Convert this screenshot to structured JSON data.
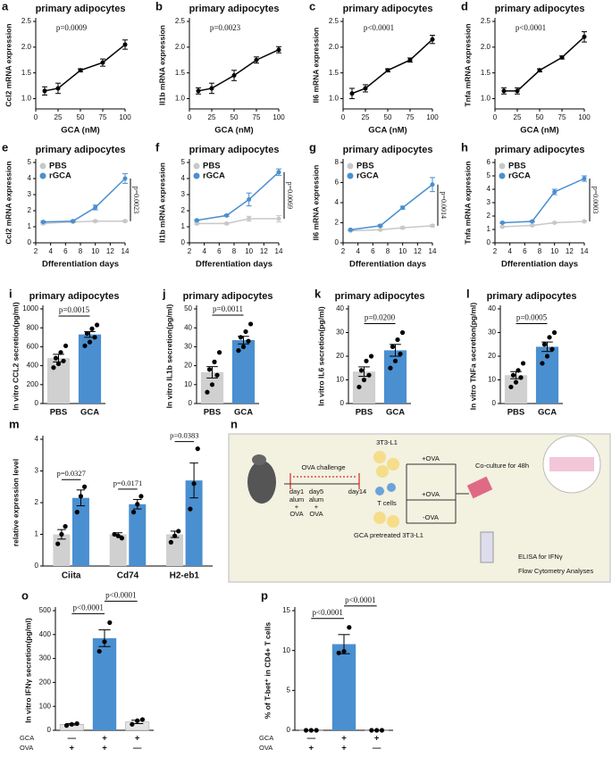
{
  "chart_data": [
    {
      "panel": "a",
      "type": "line",
      "title": "primary adipocytes",
      "ylabel": "Ccl2 mRNA expression",
      "xlabel": "GCA (nM)",
      "annotations": [
        "p=0.0009"
      ],
      "x": [
        10,
        25,
        50,
        75,
        100
      ],
      "xlim": [
        0,
        100
      ],
      "xticks": [
        0,
        25,
        50,
        75,
        100
      ],
      "ylim": [
        0.8,
        2.5
      ],
      "yticks": [
        {
          "value": 1,
          "label": "1.0"
        },
        1.5,
        {
          "value": 2,
          "label": "2.0"
        },
        2.5
      ],
      "series": [
        {
          "color": "#000000",
          "values": [
            1.15,
            1.2,
            1.55,
            1.7,
            2.05
          ],
          "errors": [
            0.08,
            0.1,
            0.03,
            0.07,
            0.09
          ]
        }
      ]
    },
    {
      "panel": "b",
      "type": "line",
      "title": "primary adipocytes",
      "ylabel": "Il1b mRNA expression",
      "xlabel": "GCA (nM)",
      "annotations": [
        "p=0.0023"
      ],
      "x": [
        10,
        25,
        50,
        75,
        100
      ],
      "xlim": [
        0,
        100
      ],
      "xticks": [
        0,
        25,
        50,
        75,
        100
      ],
      "ylim": [
        0.8,
        2.5
      ],
      "yticks": [
        {
          "value": 1,
          "label": "1.0"
        },
        1.5,
        {
          "value": 2,
          "label": "2.0"
        },
        2.5
      ],
      "series": [
        {
          "color": "#000000",
          "values": [
            1.15,
            1.2,
            1.45,
            1.75,
            1.95
          ],
          "errors": [
            0.06,
            0.1,
            0.1,
            0.06,
            0.06
          ]
        }
      ]
    },
    {
      "panel": "c",
      "type": "line",
      "title": "primary adipocytes",
      "ylabel": "Il6 mRNA expression",
      "xlabel": "GCA (nM)",
      "annotations": [
        "p<0.0001"
      ],
      "x": [
        10,
        25,
        50,
        75,
        100
      ],
      "xlim": [
        0,
        100
      ],
      "xticks": [
        0,
        25,
        50,
        75,
        100
      ],
      "ylim": [
        0.8,
        2.5
      ],
      "yticks": [
        {
          "value": 1,
          "label": "1.0"
        },
        1.5,
        {
          "value": 2,
          "label": "2.0"
        },
        2.5
      ],
      "series": [
        {
          "color": "#000000",
          "values": [
            1.1,
            1.2,
            1.55,
            1.75,
            2.15
          ],
          "errors": [
            0.1,
            0.07,
            0.03,
            0.04,
            0.08
          ]
        }
      ]
    },
    {
      "panel": "d",
      "type": "line",
      "title": "primary adipocytes",
      "ylabel": "Tnfa mRNA expression",
      "xlabel": "GCA (nM)",
      "annotations": [
        "p<0.0001"
      ],
      "x": [
        10,
        25,
        50,
        75,
        100
      ],
      "xlim": [
        0,
        100
      ],
      "xticks": [
        0,
        25,
        50,
        75,
        100
      ],
      "ylim": [
        0.8,
        2.5
      ],
      "yticks": [
        {
          "value": 1,
          "label": "1.0"
        },
        1.5,
        {
          "value": 2,
          "label": "2.0"
        },
        2.5
      ],
      "series": [
        {
          "color": "#000000",
          "values": [
            1.15,
            1.15,
            1.55,
            1.8,
            2.2
          ],
          "errors": [
            0.06,
            0.06,
            0.03,
            0.03,
            0.1
          ]
        }
      ]
    },
    {
      "panel": "e",
      "type": "line",
      "title": "primary adipocytes",
      "ylabel": "Ccl2 mRNA expression",
      "xlabel": "Dfferentiation days",
      "annotations": [
        "p=0.0023"
      ],
      "legend": "upper left",
      "x": [
        3,
        7,
        10,
        14
      ],
      "xlim": [
        2,
        14
      ],
      "xticks": [
        2,
        4,
        6,
        8,
        10,
        12,
        14
      ],
      "ylim": [
        0,
        5
      ],
      "yticks": [
        0,
        1,
        2,
        3,
        4,
        5
      ],
      "series": [
        {
          "name": "PBS",
          "color": "#c8c8c8",
          "values": [
            1.2,
            1.3,
            1.35,
            1.35
          ],
          "errors": [
            0.05,
            0.05,
            0.05,
            0.05
          ]
        },
        {
          "name": "rGCA",
          "color": "#4a8fd0",
          "values": [
            1.3,
            1.35,
            2.2,
            4.0
          ],
          "errors": [
            0.05,
            0.05,
            0.15,
            0.3
          ]
        }
      ]
    },
    {
      "panel": "f",
      "type": "line",
      "title": "primary adipocytes",
      "ylabel": "Il1b mRNA expression",
      "xlabel": "Dfferentiation days",
      "annotations": [
        "p=0.0069"
      ],
      "legend": "upper left",
      "x": [
        3,
        7,
        10,
        14
      ],
      "xlim": [
        2,
        14
      ],
      "xticks": [
        2,
        4,
        6,
        8,
        10,
        12,
        14
      ],
      "ylim": [
        0,
        5
      ],
      "yticks": [
        0,
        1,
        2,
        3,
        4,
        5
      ],
      "series": [
        {
          "name": "PBS",
          "color": "#c8c8c8",
          "values": [
            1.2,
            1.2,
            1.5,
            1.5
          ],
          "errors": [
            0.05,
            0.05,
            0.15,
            0.2
          ]
        },
        {
          "name": "rGCA",
          "color": "#4a8fd0",
          "values": [
            1.4,
            1.7,
            2.7,
            4.4
          ],
          "errors": [
            0.05,
            0.05,
            0.4,
            0.2
          ]
        }
      ]
    },
    {
      "panel": "g",
      "type": "line",
      "title": "primary adipocytes",
      "ylabel": "Il6 mRNA expression",
      "xlabel": "Dfferentiation days",
      "annotations": [
        "p=0.0014"
      ],
      "legend": "upper left",
      "x": [
        3,
        7,
        10,
        14
      ],
      "xlim": [
        2,
        14
      ],
      "xticks": [
        2,
        4,
        6,
        8,
        10,
        12,
        14
      ],
      "ylim": [
        0,
        8
      ],
      "yticks": [
        0,
        2,
        4,
        6,
        8
      ],
      "series": [
        {
          "name": "PBS",
          "color": "#c8c8c8",
          "values": [
            1.2,
            1.3,
            1.5,
            1.7
          ],
          "errors": [
            0.05,
            0.05,
            0.1,
            0.1
          ]
        },
        {
          "name": "rGCA",
          "color": "#4a8fd0",
          "values": [
            1.3,
            1.7,
            3.5,
            5.8
          ],
          "errors": [
            0.05,
            0.1,
            0.15,
            0.7
          ]
        }
      ]
    },
    {
      "panel": "h",
      "type": "line",
      "title": "primary adipocytes",
      "ylabel": "Tnfa mRNA expression",
      "xlabel": "Dfferentiation days",
      "annotations": [
        "p=0.0003"
      ],
      "legend": "upper left",
      "x": [
        3,
        7,
        10,
        14
      ],
      "xlim": [
        2,
        14
      ],
      "xticks": [
        2,
        4,
        6,
        8,
        10,
        12,
        14
      ],
      "ylim": [
        0,
        6
      ],
      "yticks": [
        0,
        1,
        2,
        3,
        4,
        5,
        6
      ],
      "series": [
        {
          "name": "PBS",
          "color": "#c8c8c8",
          "values": [
            1.2,
            1.3,
            1.5,
            1.6
          ],
          "errors": [
            0.05,
            0.05,
            0.05,
            0.05
          ]
        },
        {
          "name": "rGCA",
          "color": "#4a8fd0",
          "values": [
            1.5,
            1.6,
            3.8,
            4.8
          ],
          "errors": [
            0.05,
            0.05,
            0.2,
            0.2
          ]
        }
      ]
    },
    {
      "panel": "i",
      "type": "bar",
      "title": "primary adipocytes",
      "ylabel": "In vitro CCL2 secretion(pg/ml)",
      "annotations": [
        "p=0.0015"
      ],
      "categories": [
        "PBS",
        "GCA"
      ],
      "colors": [
        "#d0d0d0",
        "#4a8fd0"
      ],
      "values": [
        480,
        730
      ],
      "errors": [
        40,
        30
      ],
      "points": [
        [
          380,
          420,
          450,
          480,
          540,
          610
        ],
        [
          610,
          650,
          700,
          740,
          790,
          830
        ]
      ],
      "ylim": [
        0,
        1000
      ],
      "yticks": [
        0,
        200,
        400,
        600,
        800,
        1000
      ]
    },
    {
      "panel": "j",
      "type": "bar",
      "title": "primary adipocytes",
      "ylabel": "In vitro IL1b secretion(pg/ml)",
      "annotations": [
        "p=0.0011"
      ],
      "categories": [
        "PBS",
        "GCA"
      ],
      "colors": [
        "#d0d0d0",
        "#4a8fd0"
      ],
      "values": [
        16.5,
        33.5
      ],
      "errors": [
        3,
        2
      ],
      "points": [
        [
          6,
          10,
          15,
          18,
          22,
          27
        ],
        [
          28,
          30,
          33,
          35,
          38,
          42
        ]
      ],
      "ylim": [
        0,
        50
      ],
      "yticks": [
        0,
        10,
        20,
        30,
        40,
        50
      ]
    },
    {
      "panel": "k",
      "type": "bar",
      "title": "primary adipocytes",
      "ylabel": "In vitro IL6 secretion(pg/ml)",
      "annotations": [
        "p=0.0200"
      ],
      "categories": [
        "PBS",
        "GCA"
      ],
      "colors": [
        "#d0d0d0",
        "#4a8fd0"
      ],
      "values": [
        13.5,
        22.5
      ],
      "errors": [
        2,
        2.5
      ],
      "points": [
        [
          7,
          10,
          12,
          14,
          18,
          20
        ],
        [
          15,
          18,
          21,
          24,
          27,
          30
        ]
      ],
      "ylim": [
        0,
        40
      ],
      "yticks": [
        0,
        10,
        20,
        30,
        40
      ]
    },
    {
      "panel": "l",
      "type": "bar",
      "title": "primary adipocytes",
      "ylabel": "In vitro TNFa secretion(pg/ml)",
      "annotations": [
        "p=0.0005"
      ],
      "categories": [
        "PBS",
        "GCA"
      ],
      "colors": [
        "#d0d0d0",
        "#4a8fd0"
      ],
      "values": [
        12,
        24
      ],
      "errors": [
        1.5,
        2
      ],
      "points": [
        [
          7,
          9,
          11,
          12,
          14,
          17
        ],
        [
          17,
          20,
          23,
          25,
          28,
          30
        ]
      ],
      "ylim": [
        0,
        40
      ],
      "yticks": [
        0,
        10,
        20,
        30,
        40
      ]
    },
    {
      "panel": "m",
      "type": "grouped_bar",
      "ylabel": "relative expression  level",
      "annotations": [
        "p=0.0327",
        "p=0.0171",
        "p=0.0383"
      ],
      "categories": [
        "Ciita",
        "Cd74",
        "H2-eb1"
      ],
      "ylim": [
        0,
        4
      ],
      "yticks": [
        0,
        1,
        2,
        3,
        4
      ],
      "series": [
        {
          "color": "#d0d0d0",
          "values": [
            1,
            1,
            1
          ],
          "errors": [
            0.15,
            0.05,
            0.1
          ],
          "points": [
            [
              0.7,
              1.0,
              1.25
            ],
            [
              1.0,
              0.95,
              0.88
            ],
            [
              0.75,
              0.95,
              1.1
            ]
          ]
        },
        {
          "color": "#4a8fd0",
          "values": [
            2.15,
            1.95,
            2.7
          ],
          "errors": [
            0.25,
            0.15,
            0.55
          ],
          "points": [
            [
              1.7,
              2.2,
              2.5
            ],
            [
              1.7,
              1.95,
              2.2
            ],
            [
              1.8,
              2.6,
              3.7
            ]
          ]
        }
      ]
    },
    {
      "panel": "o",
      "type": "bar",
      "ylabel": "In vitro IFNγ secretion(pg/ml)",
      "annotations": [
        "p<0.0001",
        "p<0.0001"
      ],
      "categories": [
        null,
        null,
        null
      ],
      "rows": [
        {
          "name": "GCA",
          "values": [
            "—",
            "+",
            "+"
          ]
        },
        {
          "name": "OVA",
          "values": [
            "+",
            "+",
            "—"
          ]
        }
      ],
      "colors": [
        "#e4e4e4",
        "#4a8fd0",
        "#e4e4e4"
      ],
      "values": [
        25,
        385,
        35
      ],
      "errors": [
        3,
        35,
        7
      ],
      "points": [
        [
          20,
          25,
          28
        ],
        [
          330,
          370,
          450
        ],
        [
          25,
          40,
          45
        ]
      ],
      "ylim": [
        0,
        500
      ],
      "yticks": [
        0,
        100,
        200,
        300,
        400,
        500
      ]
    },
    {
      "panel": "p",
      "type": "bar",
      "ylabel": "% of T-bet⁺ in CD4+ T cells",
      "annotations": [
        "p<0.0001",
        "p<0.0001"
      ],
      "categories": [
        null,
        null,
        null
      ],
      "rows": [
        {
          "name": "GCA",
          "values": [
            "—",
            "+",
            "+"
          ]
        },
        {
          "name": "OVA",
          "values": [
            "+",
            "+",
            "—"
          ]
        }
      ],
      "colors": [
        "#e4e4e4",
        "#4a8fd0",
        "#e4e4e4"
      ],
      "values": [
        0,
        10.8,
        0
      ],
      "errors": [
        0,
        1.2,
        0
      ],
      "points": [
        [
          0,
          0,
          0
        ],
        [
          9.7,
          9.9,
          12.9
        ],
        [
          0,
          0,
          0
        ]
      ],
      "ylim": [
        0,
        15
      ],
      "yticks": [
        0,
        5,
        10,
        15
      ]
    }
  ],
  "diagram": {
    "panel": "n",
    "texts": [
      "OVA challenge",
      "day1",
      "day5",
      "day14",
      "alum",
      "+",
      "OVA",
      "alum",
      "+",
      "OVA",
      "3T3-L1",
      "T cells",
      "GCA pretreated 3T3-L1",
      "+OVA",
      "+OVA",
      "-OVA",
      "Co-culture for 48h",
      "ELISA for IFNγ",
      "Flow Cytometry Analyses"
    ]
  }
}
